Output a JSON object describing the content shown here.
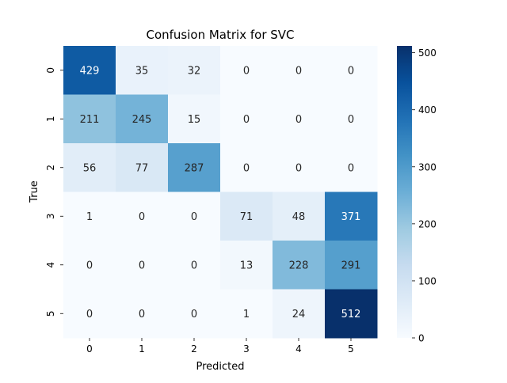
{
  "chart_data": {
    "type": "heatmap",
    "title": "Confusion Matrix for SVC",
    "xlabel": "Predicted",
    "ylabel": "True",
    "x_categories": [
      "0",
      "1",
      "2",
      "3",
      "4",
      "5"
    ],
    "y_categories": [
      "0",
      "1",
      "2",
      "3",
      "4",
      "5"
    ],
    "values": [
      [
        429,
        35,
        32,
        0,
        0,
        0
      ],
      [
        211,
        245,
        15,
        0,
        0,
        0
      ],
      [
        56,
        77,
        287,
        0,
        0,
        0
      ],
      [
        1,
        0,
        0,
        71,
        48,
        371
      ],
      [
        0,
        0,
        0,
        13,
        228,
        291
      ],
      [
        0,
        0,
        0,
        1,
        24,
        512
      ]
    ],
    "colormap": "Blues",
    "color_range": [
      0,
      512
    ],
    "colorbar_ticks": [
      0,
      100,
      200,
      300,
      400,
      500
    ],
    "colorbar_tick_labels": [
      "0",
      "100",
      "200",
      "300",
      "400",
      "500"
    ],
    "grid": false
  }
}
